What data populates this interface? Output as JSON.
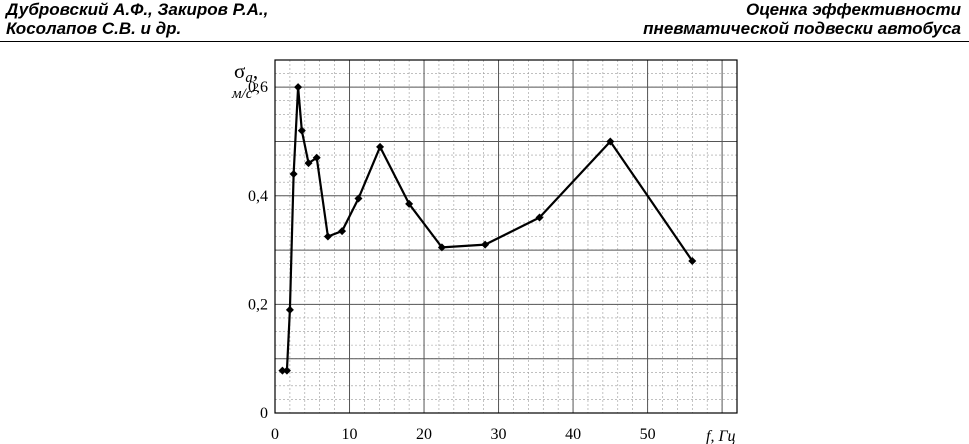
{
  "header": {
    "left_line1": "Дубровский А.Ф., Закиров Р.А.,",
    "left_line2": "Косолапов С.В. и др.",
    "right_line1": "Оценка эффективности",
    "right_line2": "пневматической подвески автобуса"
  },
  "chart_data": {
    "type": "line",
    "ylabel_symbol": "σ",
    "ylabel_subscript": "a",
    "ylabel_suffix": ",",
    "ylabel_unit": "м/с",
    "ylabel_unit_sup": "2",
    "xlabel": "f, Гц",
    "xlim": [
      0,
      62
    ],
    "ylim": [
      0,
      0.65
    ],
    "x_ticks": [
      0,
      10,
      20,
      30,
      40,
      50
    ],
    "x_tick_labels": [
      "0",
      "10",
      "20",
      "30",
      "40",
      "50"
    ],
    "y_ticks": [
      0,
      0.2,
      0.4,
      0.6
    ],
    "y_tick_labels": [
      "0",
      "0,2",
      "0,4",
      "0,6"
    ],
    "grid": true,
    "line_color": "#000000",
    "series": [
      {
        "x": [
          1.0,
          1.6,
          2.0,
          2.5,
          3.1,
          3.6,
          4.5,
          5.6,
          7.1,
          9.0,
          11.2,
          14.1,
          18.0,
          22.4,
          28.2,
          35.5,
          45.0,
          56.0
        ],
        "y": [
          0.078,
          0.078,
          0.19,
          0.44,
          0.6,
          0.52,
          0.46,
          0.47,
          0.325,
          0.335,
          0.395,
          0.49,
          0.385,
          0.305,
          0.31,
          0.36,
          0.5,
          0.28
        ]
      }
    ]
  }
}
